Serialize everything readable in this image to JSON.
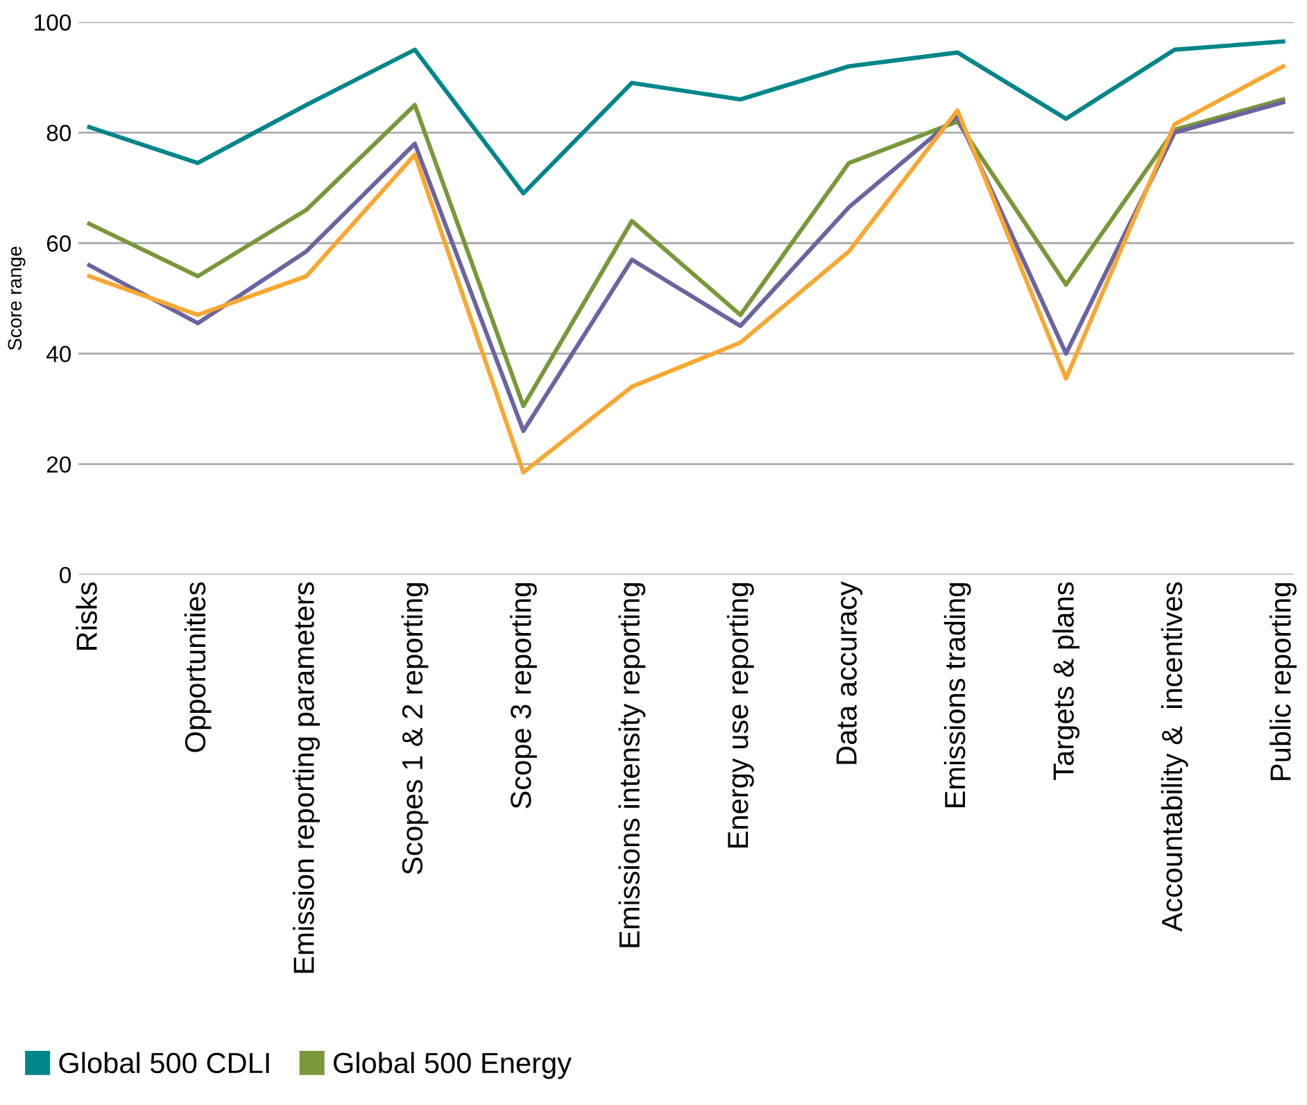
{
  "chart_data": {
    "type": "line",
    "ylabel": "Score range",
    "categories": [
      "Risks",
      "Opportunities",
      "Emission reporting parameters",
      "Scopes 1 & 2 reporting",
      "Scope 3 reporting",
      "Emissions intensity reporting",
      "Energy use reporting",
      "Data accuracy",
      "Emissions trading",
      "Targets & plans",
      "Accountability &  incentives",
      "Public reporting"
    ],
    "series": [
      {
        "name": "Global 500 CDLI",
        "color": "#00868a",
        "values": [
          81,
          74.5,
          85,
          95,
          69,
          89,
          86,
          92,
          94.5,
          82.5,
          95,
          96.5
        ]
      },
      {
        "name": "Global 500 Energy",
        "color": "#78983a",
        "values": [
          63.5,
          54,
          66,
          85,
          30.5,
          64,
          47,
          74.5,
          82,
          52.5,
          80.5,
          86
        ]
      },
      {
        "color": "#6c64a0",
        "values": [
          56,
          45.5,
          58.5,
          78,
          26,
          57,
          45,
          66.5,
          83,
          40,
          80,
          85.5
        ]
      },
      {
        "color": "#f9a731",
        "values": [
          54,
          47,
          54,
          76,
          18.5,
          34,
          42,
          58.5,
          84,
          35.5,
          81.5,
          92
        ]
      }
    ],
    "ylim": [
      0,
      100
    ],
    "yticks": [
      0,
      20,
      40,
      60,
      80,
      100
    ],
    "grid": "y",
    "legend": "bottom",
    "marker": "none",
    "line_style": "solid"
  }
}
